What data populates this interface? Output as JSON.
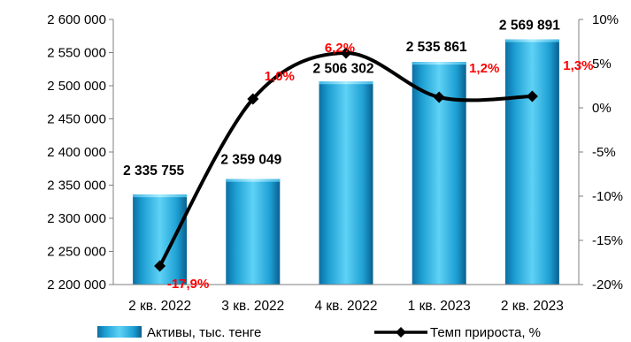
{
  "chart_data": {
    "type": "bar+line",
    "categories": [
      "2 кв. 2022",
      "3 кв. 2022",
      "4 кв. 2022",
      "1 кв. 2023",
      "2 кв. 2023"
    ],
    "series": [
      {
        "name": "Активы, тыс. тенге",
        "type": "bar",
        "axis": "left",
        "values": [
          2335755,
          2359049,
          2506302,
          2535861,
          2569891
        ],
        "labels": [
          "2 335 755",
          "2 359 049",
          "2 506 302",
          "2 535 861",
          "2 569 891"
        ],
        "color": "#1fa4d6"
      },
      {
        "name": "Темп прироста, %",
        "type": "line",
        "axis": "right",
        "values": [
          -17.9,
          1.0,
          6.2,
          1.2,
          1.3
        ],
        "labels": [
          "-17,9%",
          "1,0%",
          "6,2%",
          "1,2%",
          "1,3%"
        ],
        "color": "#000000",
        "label_color": "#ff0000"
      }
    ],
    "left_axis": {
      "min": 2200000,
      "max": 2600000,
      "step": 50000,
      "ticks": [
        "2 200 000",
        "2 250 000",
        "2 300 000",
        "2 350 000",
        "2 400 000",
        "2 450 000",
        "2 500 000",
        "2 550 000",
        "2 600 000"
      ]
    },
    "right_axis": {
      "min": -20,
      "max": 10,
      "step": 5,
      "ticks": [
        "-20%",
        "-15%",
        "-10%",
        "-5%",
        "0%",
        "5%",
        "10%"
      ]
    },
    "legend": "bottom",
    "grid": false
  }
}
